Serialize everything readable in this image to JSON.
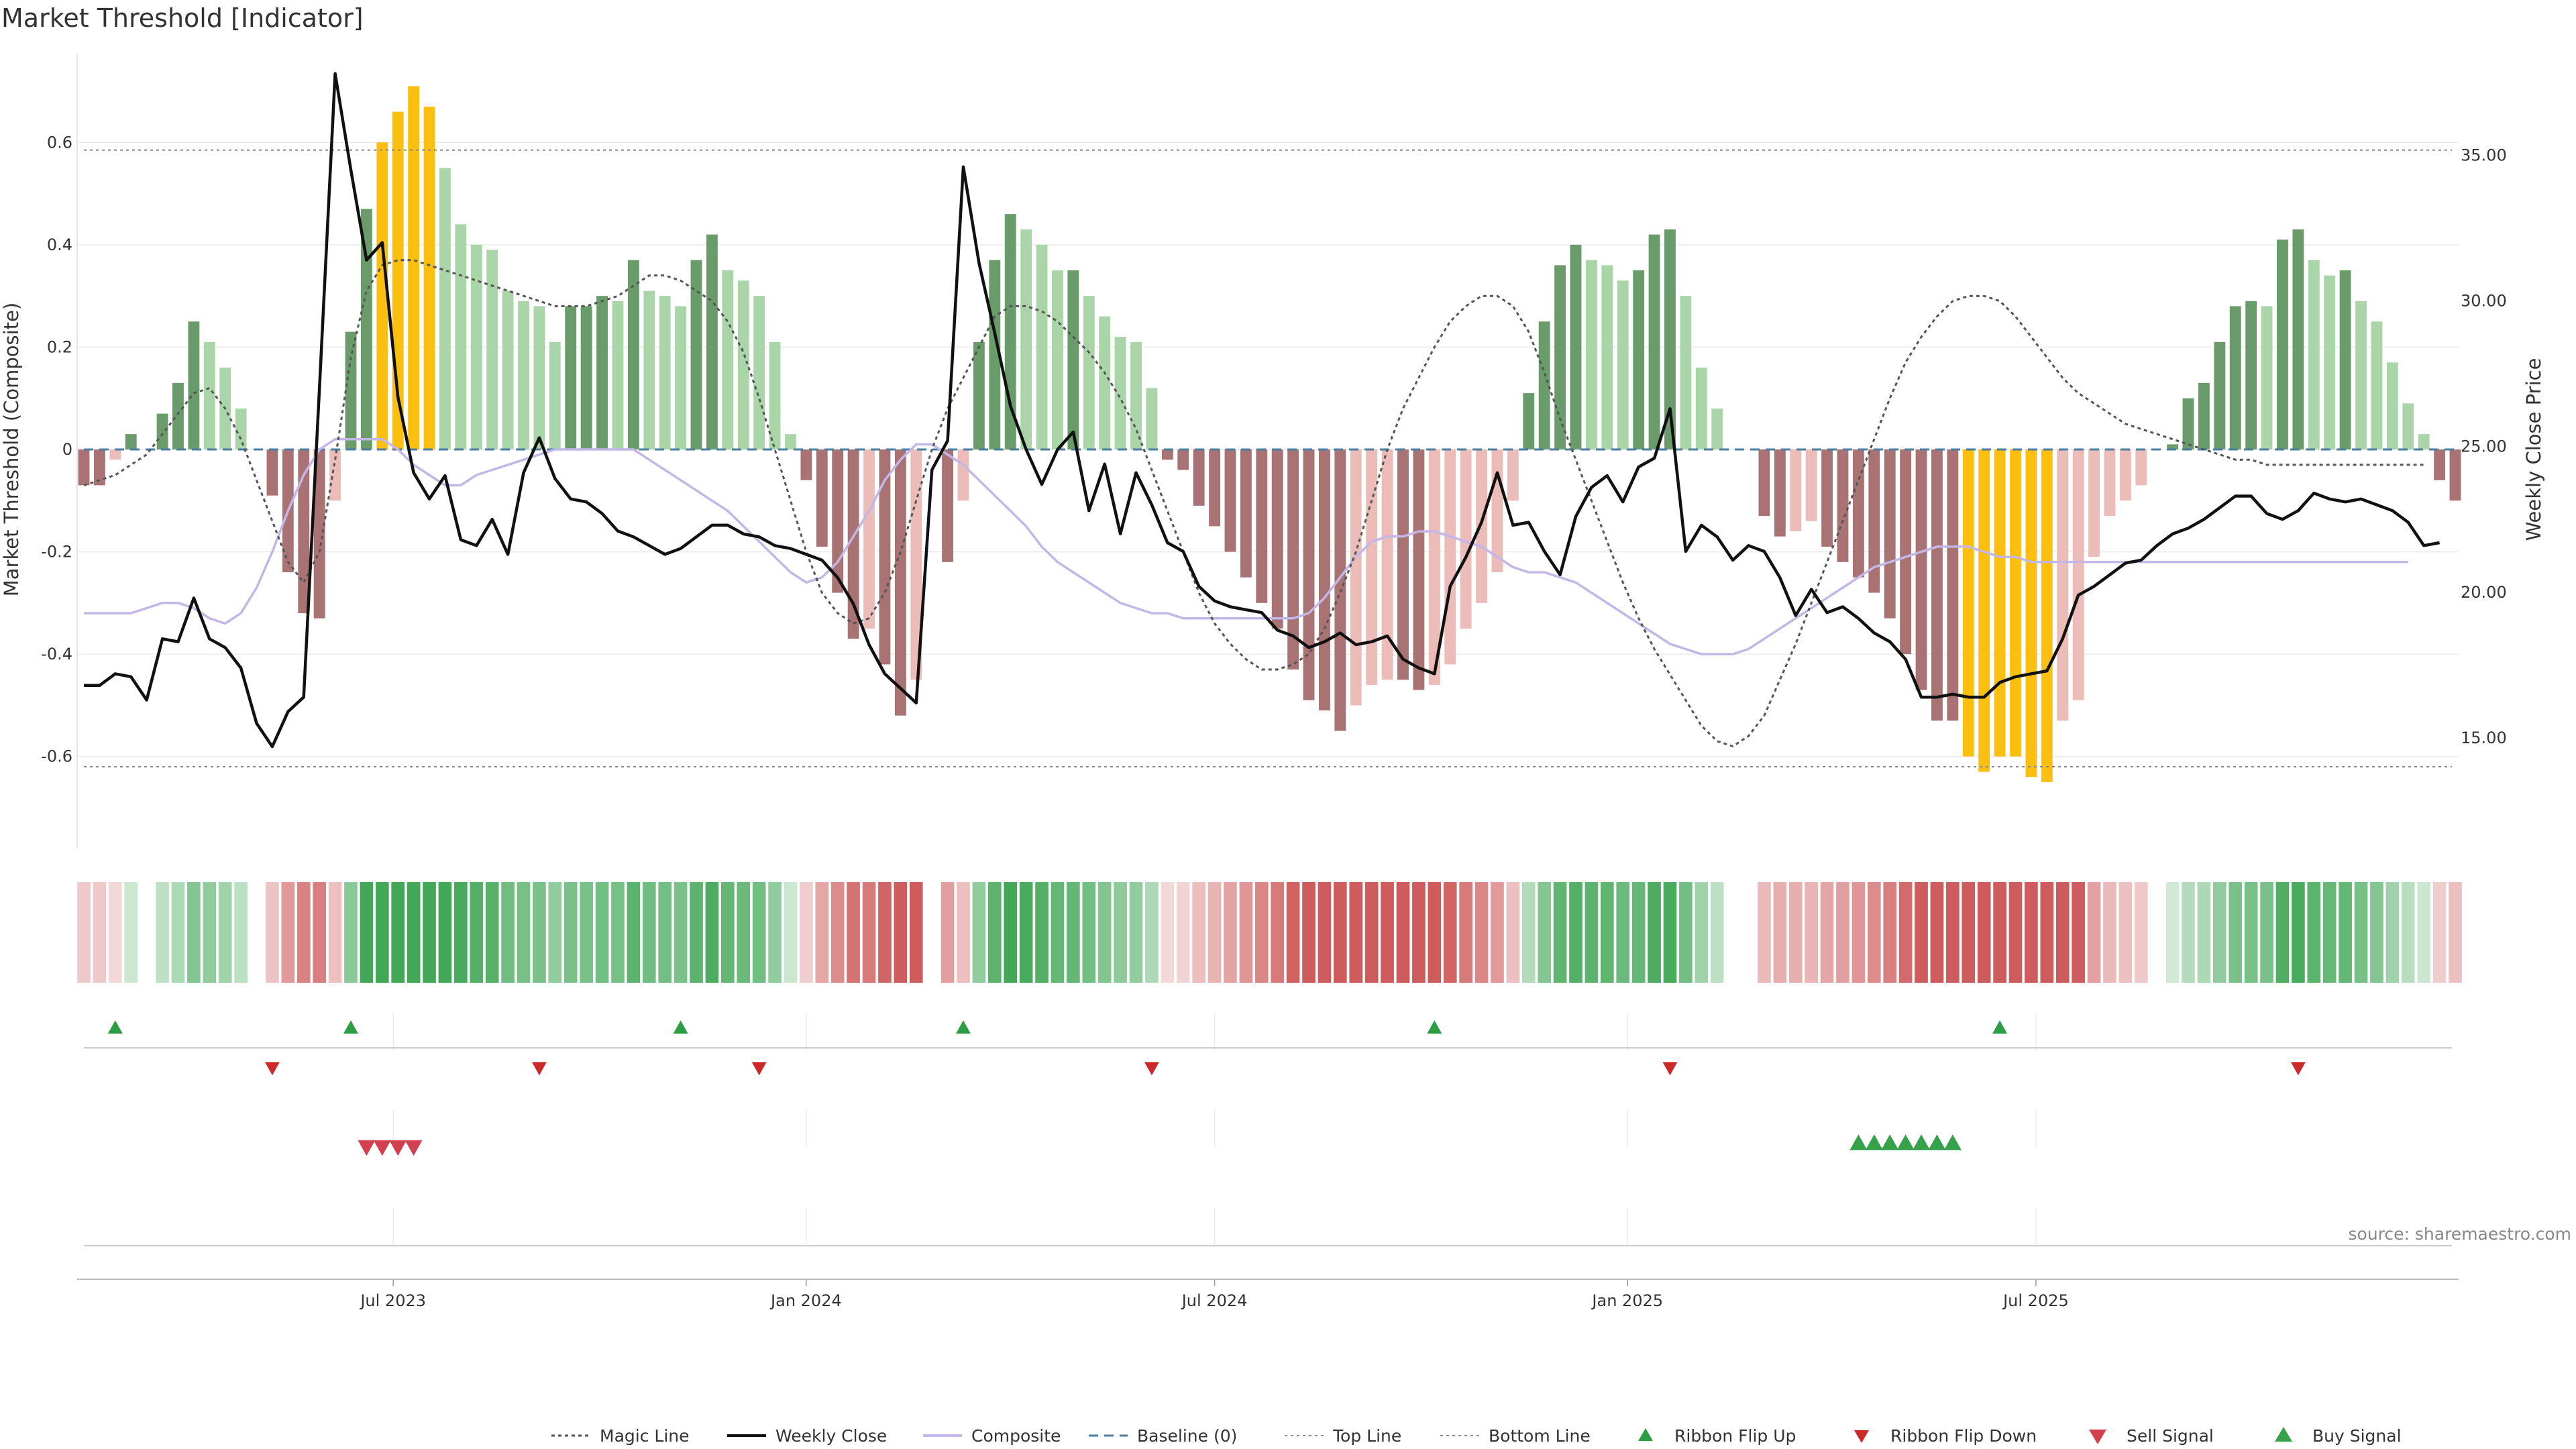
{
  "chart_data": {
    "type": "bar",
    "title": "Market Threshold [Indicator]",
    "ylabel_left": "Market Threshold (Composite)",
    "ylabel_right": "Weekly Close Price",
    "ylim_left": [
      -0.78,
      0.78
    ],
    "ylim_right": [
      11.2,
      38.6
    ],
    "yticks_left": [
      "0.6",
      "0.4",
      "0.2",
      "0",
      "-0.2",
      "-0.4",
      "-0.6"
    ],
    "yticks_left_values": [
      0.6,
      0.4,
      0.2,
      0,
      -0.2,
      -0.4,
      -0.6
    ],
    "yticks_right": [
      "35.00",
      "30.00",
      "25.00",
      "20.00",
      "15.00"
    ],
    "yticks_right_values": [
      35,
      30,
      25,
      20,
      15
    ],
    "xticks": [
      "Jul 2023",
      "Jan 2024",
      "Jul 2024",
      "Jan 2025",
      "Jul 2025"
    ],
    "xticks_index": [
      19.7,
      46,
      72,
      98.3,
      124.3
    ],
    "top_line": 0.585,
    "bottom_line": -0.62,
    "baseline": 0,
    "composite": [
      -0.07,
      -0.07,
      -0.02,
      0.03,
      0,
      0.07,
      0.13,
      0.25,
      0.21,
      0.16,
      0.08,
      0,
      -0.09,
      -0.24,
      -0.32,
      -0.33,
      -0.1,
      0.23,
      0.47,
      0.6,
      0.66,
      0.71,
      0.67,
      0.55,
      0.44,
      0.4,
      0.39,
      0.31,
      0.29,
      0.28,
      0.21,
      0.28,
      0.28,
      0.3,
      0.29,
      0.37,
      0.31,
      0.3,
      0.28,
      0.37,
      0.42,
      0.35,
      0.33,
      0.3,
      0.21,
      0.03,
      -0.06,
      -0.19,
      -0.28,
      -0.37,
      -0.35,
      -0.42,
      -0.52,
      -0.45,
      0,
      -0.22,
      -0.1,
      0.21,
      0.37,
      0.46,
      0.43,
      0.4,
      0.35,
      0.35,
      0.3,
      0.26,
      0.22,
      0.21,
      0.12,
      -0.02,
      -0.04,
      -0.11,
      -0.15,
      -0.2,
      -0.25,
      -0.3,
      -0.35,
      -0.43,
      -0.49,
      -0.51,
      -0.55,
      -0.5,
      -0.46,
      -0.45,
      -0.45,
      -0.47,
      -0.46,
      -0.42,
      -0.35,
      -0.3,
      -0.24,
      -0.1,
      0.11,
      0.25,
      0.36,
      0.4,
      0.37,
      0.36,
      0.33,
      0.35,
      0.42,
      0.43,
      0.3,
      0.16,
      0.08,
      0,
      0,
      -0.13,
      -0.17,
      -0.16,
      -0.14,
      -0.19,
      -0.22,
      -0.25,
      -0.28,
      -0.33,
      -0.4,
      -0.47,
      -0.53,
      -0.53,
      -0.6,
      -0.63,
      -0.6,
      -0.6,
      -0.64,
      -0.65,
      -0.53,
      -0.49,
      -0.21,
      -0.13,
      -0.1,
      -0.07,
      0,
      0.01,
      0.1,
      0.13,
      0.21,
      0.28,
      0.29,
      0.28,
      0.41,
      0.43,
      0.37,
      0.34,
      0.35,
      0.29,
      0.25,
      0.17,
      0.09,
      0.03,
      -0.06,
      -0.1
    ],
    "price": [
      16.8,
      16.8,
      17.2,
      17.1,
      16.3,
      18.4,
      18.3,
      19.8,
      18.4,
      18.1,
      17.4,
      15.5,
      14.7,
      15.9,
      16.4,
      27,
      37.8,
      34.5,
      31.4,
      32,
      26.7,
      24.1,
      23.2,
      24,
      21.8,
      21.6,
      22.5,
      21.3,
      24.1,
      25.3,
      23.9,
      23.2,
      23.1,
      22.7,
      22.1,
      21.9,
      21.6,
      21.3,
      21.5,
      21.9,
      22.3,
      22.3,
      22,
      21.9,
      21.6,
      21.5,
      21.3,
      21.1,
      20.5,
      19.6,
      18.2,
      17.2,
      16.7,
      16.2,
      24.2,
      25.2,
      34.6,
      31.3,
      28.9,
      26.4,
      24.9,
      23.7,
      24.9,
      25.5,
      22.8,
      24.4,
      22,
      24.1,
      23,
      21.7,
      21.4,
      20.2,
      19.7,
      19.5,
      19.4,
      19.3,
      18.7,
      18.5,
      18.1,
      18.3,
      18.6,
      18.2,
      18.3,
      18.5,
      17.7,
      17.4,
      17.2,
      20.2,
      21.2,
      22.4,
      24.1,
      22.3,
      22.4,
      21.4,
      20.6,
      22.6,
      23.6,
      24,
      23.1,
      24.3,
      24.6,
      26.3,
      21.4,
      22.3,
      21.9,
      21.1,
      21.6,
      21.4,
      20.5,
      19.2,
      20.1,
      19.3,
      19.5,
      19.1,
      18.6,
      18.3,
      17.7,
      16.4,
      16.4,
      16.5,
      16.4,
      16.4,
      16.9,
      17.1,
      17.2,
      17.3,
      18.4,
      19.9,
      20.2,
      20.6,
      21,
      21.1,
      21.6,
      22,
      22.2,
      22.5,
      22.9,
      23.3,
      23.3,
      22.7,
      22.5,
      22.8,
      23.4,
      23.2,
      23.1,
      23.2,
      23,
      22.8,
      22.4,
      21.6,
      21.7
    ],
    "magic_line": [
      -0.07,
      -0.06,
      -0.05,
      -0.03,
      -0.01,
      0.03,
      0.07,
      0.11,
      0.12,
      0.08,
      0.02,
      -0.06,
      -0.14,
      -0.22,
      -0.26,
      -0.2,
      -0.02,
      0.18,
      0.31,
      0.36,
      0.37,
      0.37,
      0.36,
      0.35,
      0.34,
      0.33,
      0.32,
      0.31,
      0.3,
      0.29,
      0.28,
      0.28,
      0.28,
      0.29,
      0.3,
      0.32,
      0.34,
      0.34,
      0.33,
      0.31,
      0.29,
      0.25,
      0.19,
      0.1,
      0,
      -0.1,
      -0.2,
      -0.28,
      -0.32,
      -0.34,
      -0.33,
      -0.28,
      -0.2,
      -0.1,
      0,
      0.08,
      0.14,
      0.2,
      0.26,
      0.28,
      0.28,
      0.27,
      0.25,
      0.22,
      0.19,
      0.15,
      0.1,
      0.04,
      -0.04,
      -0.12,
      -0.2,
      -0.28,
      -0.34,
      -0.38,
      -0.41,
      -0.43,
      -0.43,
      -0.42,
      -0.4,
      -0.35,
      -0.28,
      -0.2,
      -0.1,
      0,
      0.08,
      0.14,
      0.2,
      0.25,
      0.28,
      0.3,
      0.3,
      0.28,
      0.23,
      0.15,
      0.06,
      -0.02,
      -0.1,
      -0.18,
      -0.26,
      -0.33,
      -0.39,
      -0.44,
      -0.49,
      -0.54,
      -0.57,
      -0.58,
      -0.56,
      -0.52,
      -0.45,
      -0.38,
      -0.3,
      -0.22,
      -0.14,
      -0.06,
      0.02,
      0.1,
      0.17,
      0.22,
      0.26,
      0.29,
      0.3,
      0.3,
      0.29,
      0.26,
      0.22,
      0.18,
      0.14,
      0.11,
      0.09,
      0.07,
      0.05,
      0.04,
      0.03,
      0.02,
      0.01,
      0,
      -0.01,
      -0.02,
      -0.02,
      -0.03,
      -0.03,
      -0.03,
      -0.03,
      -0.03,
      -0.03,
      -0.03,
      -0.03,
      -0.03,
      -0.03,
      -0.03
    ],
    "composite_smooth": [
      -0.32,
      -0.32,
      -0.32,
      -0.32,
      -0.31,
      -0.3,
      -0.3,
      -0.31,
      -0.33,
      -0.34,
      -0.32,
      -0.27,
      -0.2,
      -0.12,
      -0.05,
      0,
      0.02,
      0.02,
      0.02,
      0.02,
      0,
      -0.03,
      -0.05,
      -0.07,
      -0.07,
      -0.05,
      -0.04,
      -0.03,
      -0.02,
      -0.01,
      0,
      0,
      0,
      0,
      0,
      0,
      -0.02,
      -0.04,
      -0.06,
      -0.08,
      -0.1,
      -0.12,
      -0.15,
      -0.18,
      -0.21,
      -0.24,
      -0.26,
      -0.25,
      -0.22,
      -0.17,
      -0.12,
      -0.06,
      -0.02,
      0.01,
      0.01,
      -0.01,
      -0.03,
      -0.06,
      -0.09,
      -0.12,
      -0.15,
      -0.19,
      -0.22,
      -0.24,
      -0.26,
      -0.28,
      -0.3,
      -0.31,
      -0.32,
      -0.32,
      -0.33,
      -0.33,
      -0.33,
      -0.33,
      -0.33,
      -0.33,
      -0.33,
      -0.33,
      -0.32,
      -0.29,
      -0.25,
      -0.21,
      -0.18,
      -0.17,
      -0.17,
      -0.16,
      -0.16,
      -0.17,
      -0.18,
      -0.19,
      -0.21,
      -0.23,
      -0.24,
      -0.24,
      -0.25,
      -0.26,
      -0.28,
      -0.3,
      -0.32,
      -0.34,
      -0.36,
      -0.38,
      -0.39,
      -0.4,
      -0.4,
      -0.4,
      -0.39,
      -0.37,
      -0.35,
      -0.33,
      -0.31,
      -0.29,
      -0.27,
      -0.25,
      -0.23,
      -0.22,
      -0.21,
      -0.2,
      -0.19,
      -0.19,
      -0.19,
      -0.2,
      -0.21,
      -0.21,
      -0.22,
      -0.22,
      -0.22,
      -0.22,
      -0.22,
      -0.22,
      -0.22,
      -0.22,
      -0.22,
      -0.22,
      -0.22,
      -0.22,
      -0.22,
      -0.22,
      -0.22,
      -0.22,
      -0.22,
      -0.22,
      -0.22,
      -0.22,
      -0.22,
      -0.22,
      -0.22,
      -0.22,
      -0.22
    ],
    "highlight_high_indices": [
      19,
      20,
      21,
      22
    ],
    "highlight_low_indices": [
      120,
      121,
      122,
      123,
      124,
      125
    ],
    "ribbon_flip_up_indices": [
      2,
      17,
      38,
      56,
      86,
      122
    ],
    "ribbon_flip_down_indices": [
      12,
      29,
      43,
      68,
      101,
      141
    ],
    "sell_signal_indices": [
      18,
      19,
      20,
      21
    ],
    "buy_signal_indices": [
      113,
      114,
      115,
      116,
      117,
      118,
      119
    ],
    "colors": {
      "strong_up": "#6a9b6a",
      "weak_up": "#aad5a8",
      "strong_down": "#a97373",
      "weak_down": "#ebbcb8",
      "highlight": "#fbbf10",
      "price_line": "#111111",
      "composite_line": "#c3b7e8",
      "magic_line": "#555555",
      "baseline": "#4a7fa3",
      "flip_up": "#2e9e45",
      "flip_down": "#cc2a2a",
      "sell": "#d24050",
      "buy": "#36a04a"
    },
    "legend_placement": "bottom-center",
    "legend": [
      "Magic Line",
      "Weekly Close",
      "Composite",
      "Baseline (0)",
      "Top Line",
      "Bottom Line",
      "Ribbon Flip Up",
      "Ribbon Flip Down",
      "Sell Signal",
      "Buy Signal"
    ],
    "source": "source: sharemaestro.com",
    "grid": true
  }
}
